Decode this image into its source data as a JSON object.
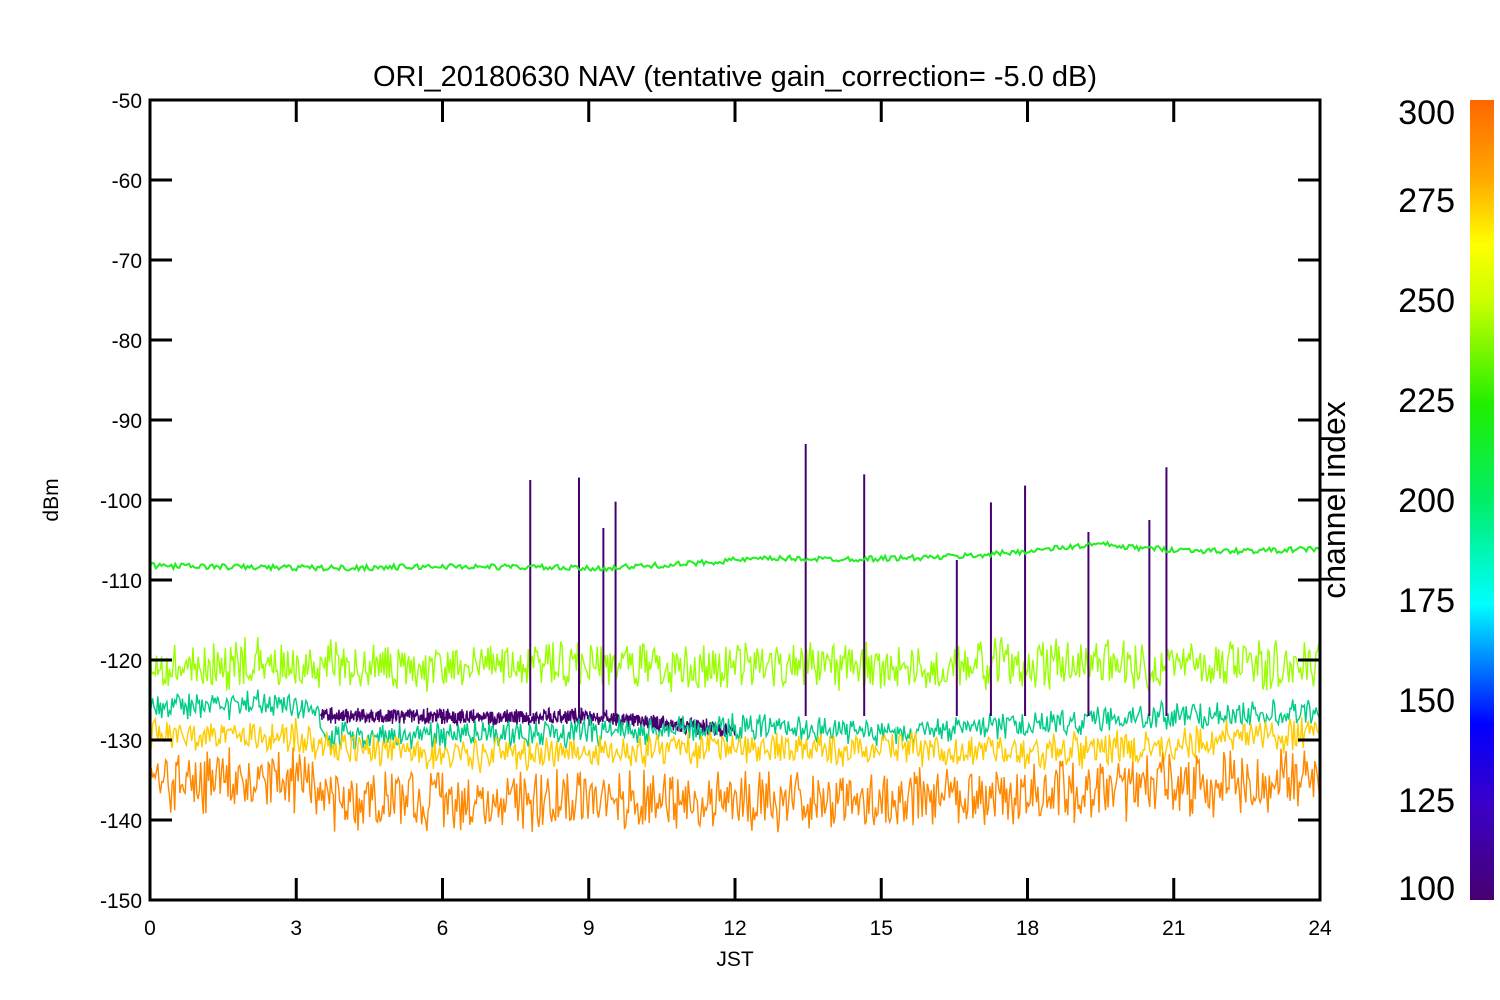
{
  "chart_data": {
    "type": "line",
    "title": "ORI_20180630 NAV (tentative gain_correction= -5.0 dB)",
    "xlabel": "JST",
    "ylabel": "dBm",
    "xlim": [
      0,
      24
    ],
    "ylim": [
      -150,
      -50
    ],
    "x_ticks": [
      0,
      3,
      6,
      9,
      12,
      15,
      18,
      21,
      24
    ],
    "y_ticks": [
      -50,
      -60,
      -70,
      -80,
      -90,
      -100,
      -110,
      -120,
      -130,
      -140,
      -150
    ],
    "grid": false,
    "series": [
      {
        "color": "#22ee22",
        "x": [
          0,
          2,
          4,
          6,
          8,
          9,
          10,
          11,
          12,
          13,
          14,
          15,
          16,
          17,
          18,
          19,
          19.5,
          20,
          21,
          22,
          23,
          24
        ],
        "values": [
          -108.2,
          -108.4,
          -108.5,
          -108.3,
          -108.4,
          -108.6,
          -108.3,
          -108.0,
          -107.5,
          -107.3,
          -107.4,
          -107.3,
          -107.2,
          -106.9,
          -106.4,
          -105.8,
          -105.5,
          -105.9,
          -106.2,
          -106.4,
          -106.3,
          -106.1
        ]
      },
      {
        "color": "#99ff00",
        "x": [
          0,
          3,
          6,
          9,
          12,
          15,
          18,
          21,
          24
        ],
        "values": [
          -120.5,
          -120.5,
          -120.8,
          -120.8,
          -120.8,
          -120.8,
          -120.6,
          -120.6,
          -120.5
        ],
        "spread": 3.5
      },
      {
        "color": "#470070",
        "x": [
          3.5,
          4.5,
          5.5,
          6.5,
          7.5,
          8.5,
          9.5,
          10.5,
          11.5,
          12.0
        ],
        "values": [
          -126.8,
          -127.0,
          -127.0,
          -127.2,
          -127.2,
          -127.0,
          -127.3,
          -128.0,
          -128.5,
          -129.0
        ],
        "spread": 1.2
      },
      {
        "color": "#00cc88",
        "x": [
          0,
          1,
          2,
          3,
          3.4,
          3.6,
          6,
          9,
          12,
          15,
          18,
          21,
          24
        ],
        "values": [
          -126.0,
          -125.8,
          -125.5,
          -125.8,
          -126.0,
          -129.5,
          -129.5,
          -129.0,
          -128.5,
          -129.0,
          -128.0,
          -127.0,
          -126.5
        ],
        "spread": 2.0
      },
      {
        "color": "#ffcc00",
        "x": [
          0,
          3,
          3.5,
          6,
          9,
          12,
          15,
          18,
          21,
          22.5,
          24
        ],
        "values": [
          -129.5,
          -129.5,
          -131.0,
          -132.0,
          -131.5,
          -131.0,
          -131.0,
          -131.5,
          -131.0,
          -129.0,
          -129.5
        ],
        "spread": 2.5
      },
      {
        "color": "#ff8800",
        "x": [
          0,
          3,
          3.5,
          6,
          9,
          12,
          15,
          18,
          21,
          24
        ],
        "values": [
          -135.0,
          -135.0,
          -137.5,
          -137.5,
          -137.5,
          -137.5,
          -137.5,
          -137.0,
          -135.5,
          -135.0
        ],
        "spread": 4.5
      }
    ],
    "spikes": {
      "color": "#470070",
      "x": [
        7.8,
        8.8,
        9.3,
        9.55,
        13.45,
        14.65,
        16.55,
        17.25,
        17.95,
        19.25,
        20.5,
        20.85
      ],
      "values": [
        -97.5,
        -97.2,
        -103.5,
        -100.2,
        -93.0,
        -96.8,
        -107.5,
        -100.3,
        -98.2,
        -104.0,
        -102.5,
        -95.9
      ]
    },
    "colorbar": {
      "label": "channel index",
      "range": [
        100,
        300
      ],
      "ticks": [
        100,
        125,
        150,
        175,
        200,
        225,
        250,
        275,
        300
      ]
    }
  }
}
